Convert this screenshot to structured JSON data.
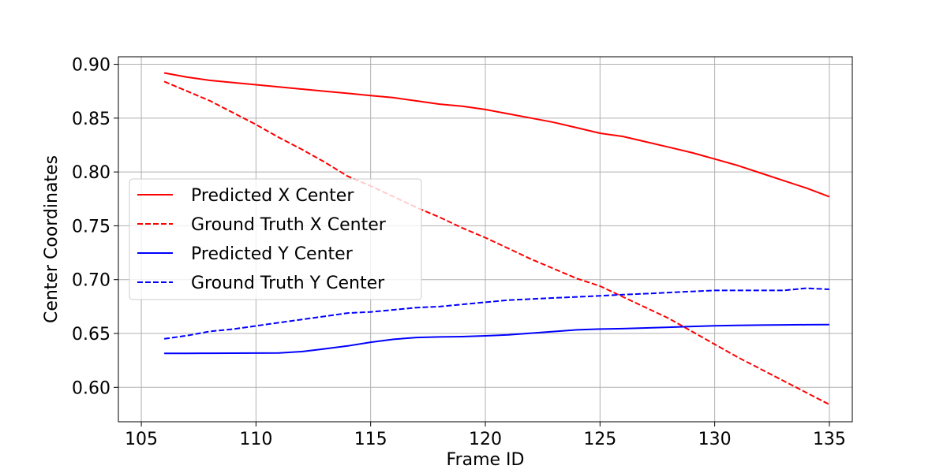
{
  "chart_data": {
    "type": "line",
    "title": "",
    "xlabel": "Frame ID",
    "ylabel": "Center Coordinates",
    "xlim": [
      104,
      136
    ],
    "ylim": [
      0.568,
      0.907
    ],
    "xticks": [
      105,
      110,
      115,
      120,
      125,
      130,
      135
    ],
    "yticks": [
      0.6,
      0.65,
      0.7,
      0.75,
      0.8,
      0.85,
      0.9
    ],
    "grid": true,
    "legend_position": "center-left",
    "x": [
      106,
      107,
      108,
      109,
      110,
      111,
      112,
      113,
      114,
      115,
      116,
      117,
      118,
      119,
      120,
      121,
      122,
      123,
      124,
      125,
      126,
      127,
      128,
      129,
      130,
      131,
      132,
      133,
      134,
      135
    ],
    "series": [
      {
        "name": "Predicted X Center",
        "color": "#ff0000",
        "dash": "solid",
        "values": [
          0.892,
          0.888,
          0.885,
          0.883,
          0.881,
          0.879,
          0.877,
          0.875,
          0.873,
          0.871,
          0.869,
          0.866,
          0.863,
          0.861,
          0.858,
          0.854,
          0.85,
          0.846,
          0.841,
          0.836,
          0.833,
          0.828,
          0.823,
          0.818,
          0.812,
          0.806,
          0.799,
          0.792,
          0.785,
          0.777
        ]
      },
      {
        "name": "Ground Truth X Center",
        "color": "#ff0000",
        "dash": "dashed",
        "values": [
          0.884,
          0.875,
          0.866,
          0.855,
          0.844,
          0.832,
          0.821,
          0.809,
          0.796,
          0.787,
          0.777,
          0.767,
          0.758,
          0.748,
          0.739,
          0.729,
          0.719,
          0.71,
          0.701,
          0.694,
          0.684,
          0.674,
          0.664,
          0.652,
          0.64,
          0.628,
          0.617,
          0.606,
          0.595,
          0.584
        ]
      },
      {
        "name": "Predicted Y Center",
        "color": "#0000ff",
        "dash": "solid",
        "values": [
          0.6315,
          0.6315,
          0.6316,
          0.6317,
          0.6318,
          0.6319,
          0.6332,
          0.6357,
          0.6384,
          0.6419,
          0.6446,
          0.6463,
          0.6468,
          0.6471,
          0.6478,
          0.6487,
          0.6503,
          0.6518,
          0.6534,
          0.6541,
          0.6545,
          0.6551,
          0.6558,
          0.6565,
          0.6571,
          0.6575,
          0.6578,
          0.658,
          0.6581,
          0.6582
        ]
      },
      {
        "name": "Ground Truth Y Center",
        "color": "#0000ff",
        "dash": "dashed",
        "values": [
          0.645,
          0.648,
          0.652,
          0.654,
          0.657,
          0.66,
          0.663,
          0.666,
          0.669,
          0.67,
          0.672,
          0.674,
          0.675,
          0.677,
          0.679,
          0.681,
          0.682,
          0.683,
          0.684,
          0.685,
          0.686,
          0.687,
          0.688,
          0.689,
          0.69,
          0.69,
          0.69,
          0.69,
          0.692,
          0.691
        ]
      }
    ]
  }
}
